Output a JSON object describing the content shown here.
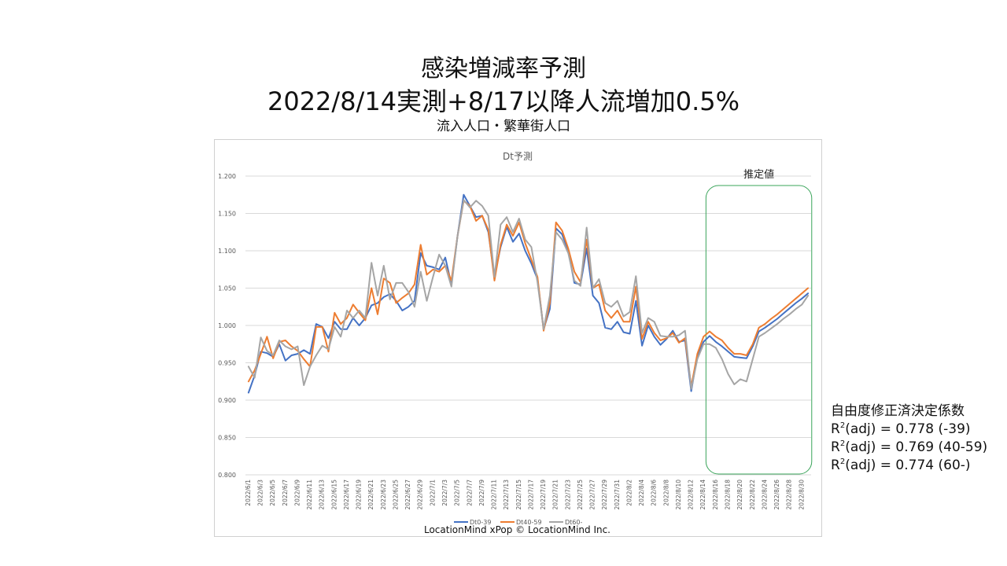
{
  "title_line1": "感染増減率予測",
  "title_line2": "2022/8/14実測+8/17以降人流増加0.5%",
  "subtitle": "流入人口・繁華街人口",
  "credit": "LocationMind xPop © LocationMind Inc.",
  "stats": {
    "heading": "自由度修正済決定係数",
    "rows": [
      {
        "prefix": "R",
        "sup": "2",
        "text": "(adj) = 0.778 (-39)"
      },
      {
        "prefix": "R",
        "sup": "2",
        "text": "(adj) = 0.769 (40-59)"
      },
      {
        "prefix": "R",
        "sup": "2",
        "text": "(adj) = 0.774 (60-)"
      }
    ]
  },
  "colors": {
    "Dt0-39": "#4472c4",
    "Dt40-59": "#ed7d31",
    "Dt60-": "#a5a5a5",
    "estimate_box": "#3aa45a",
    "grid": "#d9d9d9"
  },
  "chart_data": {
    "type": "line",
    "title": "Dt予測",
    "annotation": "推定値",
    "annotation_range": [
      "2022/8/15",
      "2022/8/31"
    ],
    "ylim": [
      0.8,
      1.2
    ],
    "yticks": [
      "0.800",
      "0.850",
      "0.900",
      "0.950",
      "1.000",
      "1.050",
      "1.100",
      "1.150",
      "1.200"
    ],
    "legend_position": "bottom",
    "x_tick_labels": [
      "2022/6/1",
      "2022/6/3",
      "2022/6/5",
      "2022/6/7",
      "2022/6/9",
      "2022/6/11",
      "2022/6/13",
      "2022/6/15",
      "2022/6/17",
      "2022/6/19",
      "2022/6/21",
      "2022/6/23",
      "2022/6/25",
      "2022/6/27",
      "2022/6/29",
      "2022/7/1",
      "2022/7/3",
      "2022/7/5",
      "2022/7/7",
      "2022/7/9",
      "2022/7/11",
      "2022/7/13",
      "2022/7/15",
      "2022/7/17",
      "2022/7/19",
      "2022/7/21",
      "2022/7/23",
      "2022/7/25",
      "2022/7/27",
      "2022/7/29",
      "2022/7/31",
      "2022/8/2",
      "2022/8/4",
      "2022/8/6",
      "2022/8/8",
      "2022/8/10",
      "2022/8/12",
      "2022/8/14",
      "2022/8/16",
      "2022/8/18",
      "2022/8/20",
      "2022/8/22",
      "2022/8/24",
      "2022/8/26",
      "2022/8/28",
      "2022/8/30"
    ],
    "x": [
      "2022/6/1",
      "2022/6/2",
      "2022/6/3",
      "2022/6/4",
      "2022/6/5",
      "2022/6/6",
      "2022/6/7",
      "2022/6/8",
      "2022/6/9",
      "2022/6/10",
      "2022/6/11",
      "2022/6/12",
      "2022/6/13",
      "2022/6/14",
      "2022/6/15",
      "2022/6/16",
      "2022/6/17",
      "2022/6/18",
      "2022/6/19",
      "2022/6/20",
      "2022/6/21",
      "2022/6/22",
      "2022/6/23",
      "2022/6/24",
      "2022/6/25",
      "2022/6/26",
      "2022/6/27",
      "2022/6/28",
      "2022/6/29",
      "2022/6/30",
      "2022/7/1",
      "2022/7/2",
      "2022/7/3",
      "2022/7/4",
      "2022/7/5",
      "2022/7/6",
      "2022/7/7",
      "2022/7/8",
      "2022/7/9",
      "2022/7/10",
      "2022/7/11",
      "2022/7/12",
      "2022/7/13",
      "2022/7/14",
      "2022/7/15",
      "2022/7/16",
      "2022/7/17",
      "2022/7/18",
      "2022/7/19",
      "2022/7/20",
      "2022/7/21",
      "2022/7/22",
      "2022/7/23",
      "2022/7/24",
      "2022/7/25",
      "2022/7/26",
      "2022/7/27",
      "2022/7/28",
      "2022/7/29",
      "2022/7/30",
      "2022/7/31",
      "2022/8/1",
      "2022/8/2",
      "2022/8/3",
      "2022/8/4",
      "2022/8/5",
      "2022/8/6",
      "2022/8/7",
      "2022/8/8",
      "2022/8/9",
      "2022/8/10",
      "2022/8/11",
      "2022/8/12",
      "2022/8/13",
      "2022/8/14",
      "2022/8/15",
      "2022/8/16",
      "2022/8/17",
      "2022/8/18",
      "2022/8/19",
      "2022/8/20",
      "2022/8/21",
      "2022/8/22",
      "2022/8/23",
      "2022/8/24",
      "2022/8/25",
      "2022/8/26",
      "2022/8/27",
      "2022/8/28",
      "2022/8/29",
      "2022/8/30",
      "2022/8/31"
    ],
    "series": [
      {
        "name": "Dt0-39",
        "values": [
          0.91,
          0.933,
          0.965,
          0.963,
          0.958,
          0.975,
          0.953,
          0.96,
          0.962,
          0.967,
          0.962,
          1.002,
          0.998,
          0.983,
          1.005,
          0.995,
          0.995,
          1.01,
          1.0,
          1.01,
          1.027,
          1.03,
          1.038,
          1.042,
          1.033,
          1.02,
          1.025,
          1.033,
          1.097,
          1.08,
          1.078,
          1.075,
          1.091,
          1.055,
          1.12,
          1.175,
          1.16,
          1.145,
          1.147,
          1.125,
          1.065,
          1.105,
          1.132,
          1.112,
          1.123,
          1.1,
          1.083,
          1.062,
          0.995,
          1.022,
          1.13,
          1.122,
          1.1,
          1.057,
          1.055,
          1.103,
          1.04,
          1.03,
          0.997,
          0.995,
          1.005,
          0.991,
          0.989,
          1.033,
          0.973,
          1.0,
          0.985,
          0.974,
          0.982,
          0.993,
          0.978,
          0.98,
          0.912,
          0.96,
          0.978,
          0.986,
          0.978,
          0.972,
          0.965,
          0.958,
          0.957,
          0.956,
          0.972,
          0.992,
          0.997,
          1.003,
          1.009,
          1.016,
          1.023,
          1.03,
          1.036,
          1.043
        ]
      },
      {
        "name": "Dt40-59",
        "values": [
          0.925,
          0.94,
          0.962,
          0.985,
          0.956,
          0.978,
          0.98,
          0.972,
          0.966,
          0.955,
          0.945,
          0.998,
          0.998,
          0.965,
          1.017,
          1.002,
          1.01,
          1.028,
          1.017,
          1.007,
          1.05,
          1.015,
          1.063,
          1.057,
          1.03,
          1.037,
          1.043,
          1.055,
          1.108,
          1.068,
          1.075,
          1.072,
          1.08,
          1.06,
          1.12,
          1.167,
          1.16,
          1.14,
          1.147,
          1.128,
          1.06,
          1.108,
          1.135,
          1.12,
          1.138,
          1.11,
          1.088,
          1.065,
          0.993,
          1.03,
          1.138,
          1.127,
          1.103,
          1.072,
          1.058,
          1.115,
          1.05,
          1.055,
          1.02,
          1.01,
          1.02,
          1.005,
          1.005,
          1.052,
          0.982,
          1.005,
          0.99,
          0.98,
          0.983,
          0.99,
          0.977,
          0.983,
          0.918,
          0.962,
          0.985,
          0.992,
          0.985,
          0.98,
          0.97,
          0.962,
          0.962,
          0.96,
          0.975,
          0.997,
          1.002,
          1.009,
          1.015,
          1.022,
          1.029,
          1.036,
          1.043,
          1.05
        ]
      },
      {
        "name": "Dt60-",
        "values": [
          0.945,
          0.93,
          0.984,
          0.966,
          0.96,
          0.98,
          0.972,
          0.968,
          0.972,
          0.92,
          0.945,
          0.96,
          0.973,
          0.968,
          0.998,
          0.985,
          1.02,
          1.01,
          1.02,
          1.01,
          1.084,
          1.04,
          1.08,
          1.035,
          1.057,
          1.057,
          1.045,
          1.025,
          1.072,
          1.033,
          1.065,
          1.095,
          1.08,
          1.052,
          1.12,
          1.168,
          1.158,
          1.167,
          1.16,
          1.147,
          1.065,
          1.135,
          1.145,
          1.125,
          1.143,
          1.115,
          1.105,
          1.058,
          0.995,
          1.04,
          1.125,
          1.115,
          1.097,
          1.06,
          1.053,
          1.131,
          1.05,
          1.062,
          1.03,
          1.025,
          1.033,
          1.012,
          1.018,
          1.066,
          0.99,
          1.01,
          1.005,
          0.986,
          0.985,
          0.985,
          0.987,
          0.993,
          0.915,
          0.955,
          0.975,
          0.975,
          0.97,
          0.955,
          0.935,
          0.921,
          0.928,
          0.925,
          0.955,
          0.985,
          0.99,
          0.996,
          1.002,
          1.009,
          1.015,
          1.022,
          1.028,
          1.04
        ]
      }
    ]
  }
}
